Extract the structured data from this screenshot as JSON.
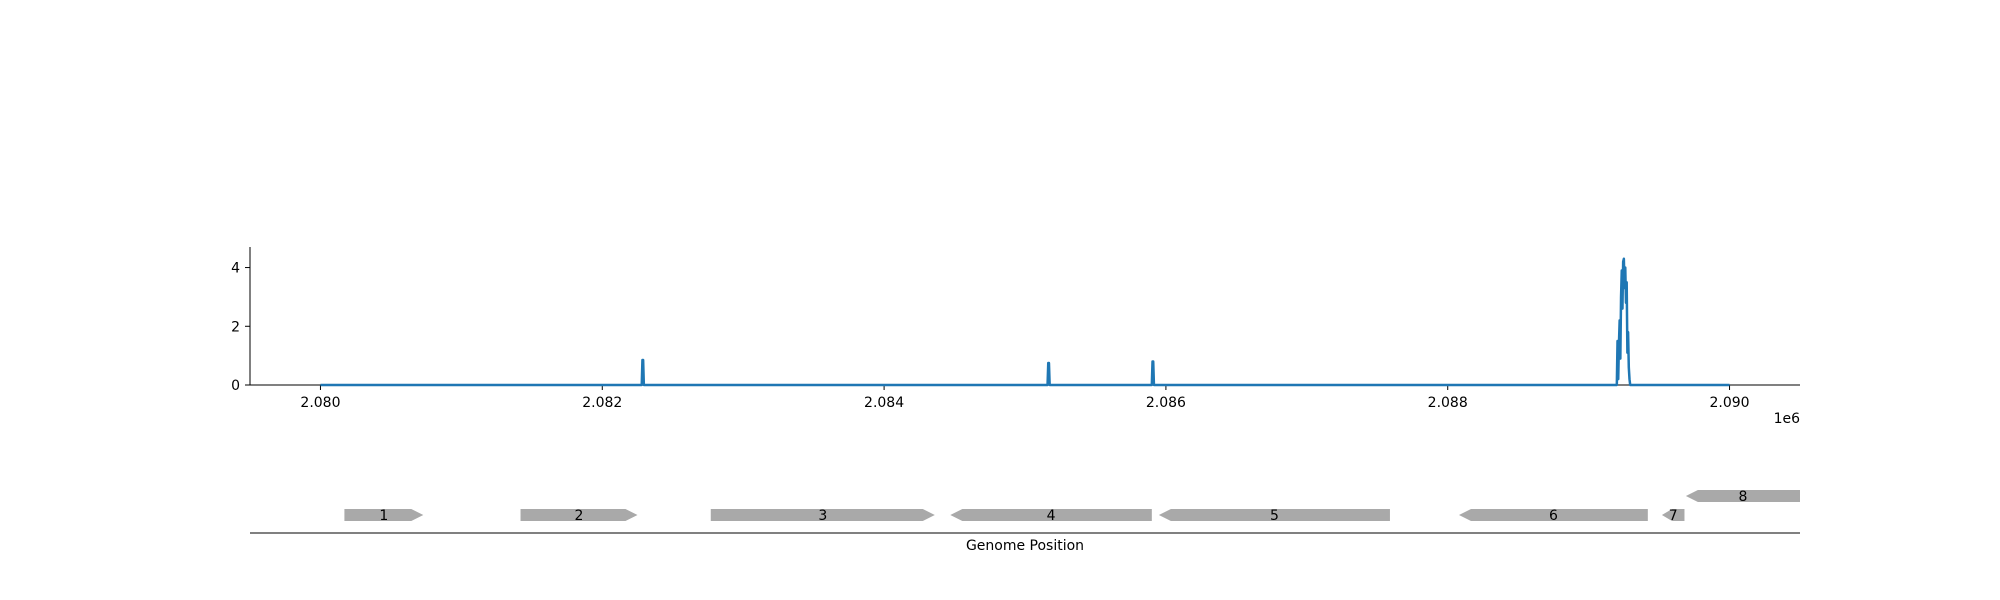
{
  "chart_data": [
    {
      "type": "line",
      "xlim": [
        2079500,
        2090500
      ],
      "ylim": [
        0,
        4.7
      ],
      "x_ticks": [
        2080000,
        2082000,
        2084000,
        2086000,
        2088000,
        2090000
      ],
      "x_tick_labels": [
        "2.080",
        "2.082",
        "2.084",
        "2.086",
        "2.088",
        "2.090"
      ],
      "x_offset_label": "1e6",
      "y_ticks": [
        0,
        2,
        4
      ],
      "y_tick_labels": [
        "0",
        "2",
        "4"
      ],
      "grid": false,
      "series": [
        {
          "color": "#1f77b4",
          "x": [
            2080000,
            2082280,
            2082285,
            2082290,
            2082295,
            2085160,
            2085165,
            2085170,
            2085175,
            2085900,
            2085905,
            2085910,
            2085915,
            2089200,
            2089205,
            2089210,
            2089215,
            2089220,
            2089225,
            2089230,
            2089235,
            2089240,
            2089245,
            2089250,
            2089255,
            2089260,
            2089265,
            2089270,
            2089275,
            2089280,
            2089285,
            2089290,
            2089295,
            2089300,
            2090000
          ],
          "y": [
            0,
            0,
            0.85,
            0.85,
            0,
            0,
            0.75,
            0.75,
            0,
            0,
            0.8,
            0.8,
            0,
            0,
            1.5,
            0.2,
            1.4,
            2.2,
            0.9,
            3.0,
            3.9,
            2.6,
            4.2,
            4.3,
            3.3,
            4.0,
            2.8,
            3.5,
            1.1,
            1.8,
            0.6,
            0.2,
            0,
            0,
            0
          ]
        }
      ]
    },
    {
      "type": "gene-track",
      "xlim": [
        2079500,
        2090500
      ],
      "xlabel": "Genome Position",
      "feature_color": "#a9a9a9",
      "features": [
        {
          "label": "1",
          "start": 2080170,
          "end": 2080730,
          "strand": "+",
          "row": 0
        },
        {
          "label": "2",
          "start": 2081420,
          "end": 2082250,
          "strand": "+",
          "row": 0
        },
        {
          "label": "3",
          "start": 2082770,
          "end": 2084360,
          "strand": "+",
          "row": 0
        },
        {
          "label": "4",
          "start": 2084470,
          "end": 2085900,
          "strand": "-",
          "row": 0
        },
        {
          "label": "5",
          "start": 2085950,
          "end": 2087590,
          "strand": "-",
          "row": 0
        },
        {
          "label": "6",
          "start": 2088080,
          "end": 2089420,
          "strand": "-",
          "row": 0
        },
        {
          "label": "7",
          "start": 2089520,
          "end": 2089680,
          "strand": "-",
          "row": 0
        },
        {
          "label": "8",
          "start": 2089690,
          "end": 2090500,
          "strand": "-",
          "row": 1
        }
      ]
    }
  ]
}
